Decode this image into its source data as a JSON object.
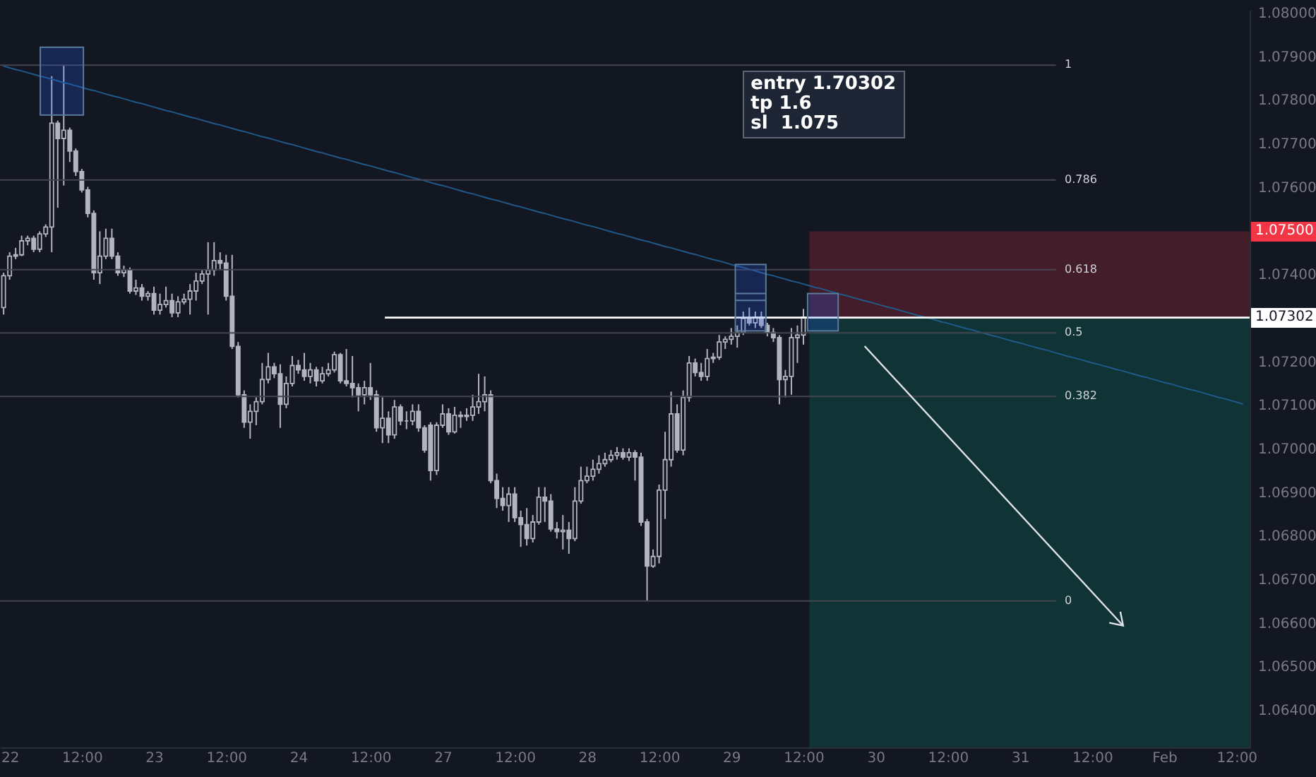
{
  "chart_data": {
    "type": "candlestick",
    "categories": [
      null,
      "22",
      null,
      null,
      null,
      null,
      null,
      null,
      null,
      null,
      null,
      null,
      null,
      "12:00",
      null,
      null,
      null,
      null,
      null,
      null,
      null,
      null,
      null,
      null,
      null,
      "23",
      null,
      null,
      null,
      null,
      null,
      null,
      null,
      null,
      null,
      null,
      null,
      "12:00",
      null,
      null,
      null,
      null,
      null,
      null,
      null,
      null,
      null,
      null,
      null,
      "24",
      null,
      null,
      null,
      null,
      null,
      null,
      null,
      null,
      null,
      null,
      null,
      "12:00",
      null,
      null,
      null,
      null,
      null,
      null,
      null,
      null,
      null,
      null,
      null,
      "27",
      null,
      null,
      null,
      null,
      null,
      null,
      null,
      null,
      null,
      null,
      null,
      "12:00",
      null,
      null,
      null,
      null,
      null,
      null,
      null,
      null,
      null,
      null,
      null,
      "28",
      null,
      null,
      null,
      null,
      null,
      null,
      null,
      null,
      null,
      null,
      null,
      "12:00",
      null,
      null,
      null,
      null,
      null,
      null,
      null,
      null,
      null,
      null,
      null,
      "29",
      null,
      null,
      null,
      null,
      null,
      null,
      null,
      null,
      null,
      null,
      null,
      "12:00",
      null,
      null,
      null,
      null,
      null,
      null,
      null,
      null,
      null,
      null,
      null,
      "30",
      null,
      null,
      null,
      null,
      null,
      null,
      null,
      null,
      null,
      null,
      null,
      "12:00",
      null,
      null,
      null,
      null,
      null,
      null,
      null,
      null,
      null,
      null,
      null,
      "31",
      null,
      null,
      null,
      null,
      null,
      null,
      null,
      null,
      null,
      null,
      null,
      "12:00",
      null,
      null,
      null,
      null,
      null,
      null,
      null,
      null,
      null,
      null,
      null,
      "Feb",
      null,
      null,
      null,
      null,
      null,
      null,
      null,
      null,
      null,
      null,
      null,
      "12:00",
      null
    ],
    "ohlc": [
      [
        1.07325,
        1.07405,
        1.07309,
        1.07398
      ],
      [
        1.07398,
        1.07452,
        1.07389,
        1.07443
      ],
      [
        1.07443,
        1.07462,
        1.07436,
        1.07446
      ],
      [
        1.07446,
        1.0749,
        1.07443,
        1.07478
      ],
      [
        1.07478,
        1.0749,
        1.07468,
        1.07484
      ],
      [
        1.07484,
        1.0749,
        1.07452,
        1.07459
      ],
      [
        1.07459,
        1.075,
        1.07452,
        1.07494
      ],
      [
        1.07494,
        1.07516,
        1.07487,
        1.0751
      ],
      [
        1.0751,
        1.07856,
        1.07452,
        1.07748
      ],
      [
        1.07748,
        1.07754,
        1.07554,
        1.07713
      ],
      [
        1.07713,
        1.07881,
        1.07605,
        1.07732
      ],
      [
        1.07732,
        1.07738,
        1.07659,
        1.07684
      ],
      [
        1.07684,
        1.0769,
        1.07627,
        1.07637
      ],
      [
        1.07637,
        1.07643,
        1.07589,
        1.07595
      ],
      [
        1.07595,
        1.07602,
        1.07532,
        1.07541
      ],
      [
        1.07541,
        1.07548,
        1.07389,
        1.07405
      ],
      [
        1.07405,
        1.075,
        1.07379,
        1.07443
      ],
      [
        1.07443,
        1.07506,
        1.07436,
        1.07484
      ],
      [
        1.07484,
        1.07506,
        1.07436,
        1.07443
      ],
      [
        1.07443,
        1.07452,
        1.07398,
        1.07405
      ],
      [
        1.07405,
        1.07421,
        1.07395,
        1.07411
      ],
      [
        1.07411,
        1.07417,
        1.07357,
        1.07363
      ],
      [
        1.07363,
        1.07389,
        1.07354,
        1.0737
      ],
      [
        1.0737,
        1.07379,
        1.07341,
        1.07351
      ],
      [
        1.07351,
        1.07363,
        1.07341,
        1.07357
      ],
      [
        1.07357,
        1.07373,
        1.07309,
        1.07319
      ],
      [
        1.07319,
        1.07357,
        1.07309,
        1.07332
      ],
      [
        1.07332,
        1.07373,
        1.07325,
        1.07341
      ],
      [
        1.07341,
        1.07357,
        1.07303,
        1.07313
      ],
      [
        1.07313,
        1.07351,
        1.07303,
        1.07338
      ],
      [
        1.07338,
        1.07357,
        1.07332,
        1.07344
      ],
      [
        1.07344,
        1.07379,
        1.07309,
        1.07363
      ],
      [
        1.07363,
        1.07405,
        1.07341,
        1.07386
      ],
      [
        1.07386,
        1.07411,
        1.07379,
        1.07402
      ],
      [
        1.07402,
        1.07475,
        1.07309,
        1.07411
      ],
      [
        1.07411,
        1.07475,
        1.07398,
        1.07433
      ],
      [
        1.07433,
        1.07452,
        1.07411,
        1.07427
      ],
      [
        1.07427,
        1.07446,
        1.07341,
        1.07351
      ],
      [
        1.07351,
        1.07446,
        1.0723,
        1.07236
      ],
      [
        1.07236,
        1.07246,
        1.07119,
        1.07125
      ],
      [
        1.07125,
        1.07135,
        1.07049,
        1.07062
      ],
      [
        1.07062,
        1.07103,
        1.07024,
        1.07087
      ],
      [
        1.07087,
        1.07119,
        1.07055,
        1.07109
      ],
      [
        1.07109,
        1.07198,
        1.07103,
        1.0716
      ],
      [
        1.0716,
        1.07221,
        1.07151,
        1.07189
      ],
      [
        1.07189,
        1.07198,
        1.07163,
        1.07173
      ],
      [
        1.07173,
        1.07195,
        1.07049,
        1.07103
      ],
      [
        1.07103,
        1.07167,
        1.07094,
        1.07151
      ],
      [
        1.07151,
        1.07214,
        1.07144,
        1.07192
      ],
      [
        1.07192,
        1.07205,
        1.07173,
        1.07182
      ],
      [
        1.07182,
        1.07221,
        1.07157,
        1.07167
      ],
      [
        1.07167,
        1.07198,
        1.07151,
        1.07182
      ],
      [
        1.07182,
        1.07189,
        1.07144,
        1.07157
      ],
      [
        1.07157,
        1.07189,
        1.07151,
        1.07173
      ],
      [
        1.07173,
        1.07198,
        1.07167,
        1.07182
      ],
      [
        1.07182,
        1.07224,
        1.07176,
        1.07217
      ],
      [
        1.07217,
        1.07221,
        1.07151,
        1.07157
      ],
      [
        1.07157,
        1.0723,
        1.07144,
        1.07151
      ],
      [
        1.07151,
        1.07214,
        1.07119,
        1.07141
      ],
      [
        1.07141,
        1.07151,
        1.07087,
        1.07125
      ],
      [
        1.07125,
        1.07157,
        1.07103,
        1.07141
      ],
      [
        1.07141,
        1.07198,
        1.07113,
        1.07125
      ],
      [
        1.07125,
        1.07135,
        1.0704,
        1.07049
      ],
      [
        1.07049,
        1.07119,
        1.07014,
        1.07071
      ],
      [
        1.07071,
        1.07087,
        1.07014,
        1.07033
      ],
      [
        1.07033,
        1.07113,
        1.07024,
        1.07097
      ],
      [
        1.07097,
        1.07103,
        1.07055,
        1.07065
      ],
      [
        1.07065,
        1.07087,
        1.07046,
        1.07065
      ],
      [
        1.07065,
        1.07103,
        1.07055,
        1.07087
      ],
      [
        1.07087,
        1.07103,
        1.0704,
        1.07049
      ],
      [
        1.07049,
        1.07055,
        1.06992,
        1.06998
      ],
      [
        1.07055,
        1.07062,
        1.06928,
        1.06951
      ],
      [
        1.06951,
        1.07062,
        1.06941,
        1.07055
      ],
      [
        1.07055,
        1.07103,
        1.07049,
        1.07081
      ],
      [
        1.07081,
        1.07094,
        1.07033,
        1.0704
      ],
      [
        1.0704,
        1.07097,
        1.07036,
        1.07078
      ],
      [
        1.07078,
        1.07087,
        1.07049,
        1.07075
      ],
      [
        1.07075,
        1.07094,
        1.07065,
        1.07078
      ],
      [
        1.07078,
        1.07125,
        1.07065,
        1.07097
      ],
      [
        1.07097,
        1.07173,
        1.07081,
        1.07109
      ],
      [
        1.07109,
        1.07167,
        1.07087,
        1.07125
      ],
      [
        1.07125,
        1.07135,
        1.06922,
        1.06928
      ],
      [
        1.06928,
        1.06944,
        1.06865,
        1.06887
      ],
      [
        1.06887,
        1.06913,
        1.06859,
        1.06871
      ],
      [
        1.06871,
        1.06913,
        1.06833,
        1.06897
      ],
      [
        1.06897,
        1.06913,
        1.06833,
        1.06843
      ],
      [
        1.06843,
        1.06859,
        1.06776,
        1.06827
      ],
      [
        1.06827,
        1.06865,
        1.06779,
        1.06795
      ],
      [
        1.06795,
        1.06849,
        1.06786,
        1.06833
      ],
      [
        1.06833,
        1.06913,
        1.06827,
        1.0689
      ],
      [
        1.0689,
        1.06913,
        1.06833,
        1.06881
      ],
      [
        1.06881,
        1.06897,
        1.06811,
        1.06817
      ],
      [
        1.06817,
        1.06833,
        1.06795,
        1.06811
      ],
      [
        1.06811,
        1.06849,
        1.0677,
        1.06814
      ],
      [
        1.06814,
        1.06833,
        1.0676,
        1.06795
      ],
      [
        1.06795,
        1.06913,
        1.06789,
        1.06881
      ],
      [
        1.06881,
        1.0696,
        1.06875,
        1.06928
      ],
      [
        1.06928,
        1.0696,
        1.06922,
        1.06938
      ],
      [
        1.06938,
        1.06976,
        1.06928,
        1.06954
      ],
      [
        1.06954,
        1.06986,
        1.06944,
        1.06967
      ],
      [
        1.06967,
        1.06992,
        1.0696,
        1.06976
      ],
      [
        1.06976,
        1.06998,
        1.0697,
        1.06986
      ],
      [
        1.06986,
        1.07005,
        1.06976,
        1.06992
      ],
      [
        1.06992,
        1.07002,
        1.06976,
        1.06982
      ],
      [
        1.06982,
        1.07002,
        1.06973,
        1.06992
      ],
      [
        1.06992,
        1.06998,
        1.06928,
        1.06982
      ],
      [
        1.06982,
        1.06992,
        1.06824,
        1.06833
      ],
      [
        1.06833,
        1.0684,
        1.06652,
        1.06732
      ],
      [
        1.06732,
        1.0677,
        1.06728,
        1.06754
      ],
      [
        1.06754,
        1.06919,
        1.06738,
        1.06906
      ],
      [
        1.06906,
        1.0704,
        1.0684,
        1.06976
      ],
      [
        1.06976,
        1.07132,
        1.0696,
        1.07081
      ],
      [
        1.07081,
        1.07103,
        1.06992,
        1.06998
      ],
      [
        1.06998,
        1.07135,
        1.06986,
        1.07119
      ],
      [
        1.07119,
        1.07214,
        1.07109,
        1.07198
      ],
      [
        1.07198,
        1.07208,
        1.07167,
        1.07176
      ],
      [
        1.07176,
        1.07198,
        1.07157,
        1.07167
      ],
      [
        1.07167,
        1.0723,
        1.07157,
        1.07208
      ],
      [
        1.07208,
        1.07221,
        1.07198,
        1.07211
      ],
      [
        1.07211,
        1.07262,
        1.07205,
        1.07246
      ],
      [
        1.07246,
        1.07259,
        1.0723,
        1.07252
      ],
      [
        1.07252,
        1.07278,
        1.0724,
        1.07259
      ],
      [
        1.07259,
        1.07284,
        1.07233,
        1.07268
      ],
      [
        1.07268,
        1.07316,
        1.07262,
        1.073
      ],
      [
        1.073,
        1.07325,
        1.07284,
        1.0729
      ],
      [
        1.0729,
        1.07316,
        1.07278,
        1.07303
      ],
      [
        1.07303,
        1.07316,
        1.07278,
        1.07284
      ],
      [
        1.07284,
        1.0729,
        1.07259,
        1.07268
      ],
      [
        1.07268,
        1.07278,
        1.07246,
        1.07256
      ],
      [
        1.07256,
        1.07262,
        1.07103,
        1.0716
      ],
      [
        1.0716,
        1.07182,
        1.07119,
        1.07167
      ],
      [
        1.07167,
        1.07278,
        1.07125,
        1.07256
      ],
      [
        1.07256,
        1.07284,
        1.07198,
        1.07262
      ],
      [
        1.07262,
        1.07322,
        1.0724,
        1.07303
      ],
      null,
      null,
      null,
      null,
      null,
      null,
      null,
      null,
      null,
      null,
      null,
      null,
      null,
      null,
      null,
      null,
      null,
      null,
      null,
      null,
      null,
      null,
      null,
      null,
      null,
      null,
      null,
      null,
      null,
      null,
      null,
      null,
      null,
      null,
      null,
      null,
      null,
      null,
      null,
      null,
      null,
      null,
      null,
      null,
      null,
      null,
      null,
      null,
      null,
      null,
      null,
      null,
      null,
      null,
      null,
      null,
      null,
      null,
      null,
      null,
      null,
      null,
      null,
      null,
      null,
      null,
      null,
      null,
      null,
      null,
      null,
      null,
      null
    ],
    "series": [
      {
        "type": "line",
        "color": "#1f5a8a",
        "values": [
          1.07879,
          1.07875,
          1.07871,
          1.07868,
          1.07864,
          1.0786,
          1.07856,
          1.07853,
          1.07849,
          1.07845,
          1.07841,
          1.07838,
          1.07834,
          1.0783,
          1.07826,
          1.07823,
          1.07819,
          1.07815,
          1.07811,
          1.07808,
          1.07804,
          1.078,
          1.07796,
          1.07793,
          1.07789,
          1.07785,
          1.07781,
          1.07777,
          1.07774,
          1.0777,
          1.07766,
          1.07762,
          1.07759,
          1.07755,
          1.07751,
          1.07747,
          1.07744,
          1.0774,
          1.07736,
          1.07732,
          1.07729,
          1.07725,
          1.07721,
          1.07717,
          1.07714,
          1.0771,
          1.07706,
          1.07702,
          1.07699,
          1.07695,
          1.07691,
          1.07687,
          1.07683,
          1.0768,
          1.07676,
          1.07672,
          1.07668,
          1.07665,
          1.07661,
          1.07657,
          1.07653,
          1.0765,
          1.07646,
          1.07642,
          1.07638,
          1.07635,
          1.07631,
          1.07627,
          1.07623,
          1.0762,
          1.07616,
          1.07612,
          1.07608,
          1.07605,
          1.07601,
          1.07597,
          1.07593,
          1.07589,
          1.07586,
          1.07582,
          1.07578,
          1.07574,
          1.07571,
          1.07567,
          1.07563,
          1.07559,
          1.07556,
          1.07552,
          1.07548,
          1.07544,
          1.07541,
          1.07537,
          1.07533,
          1.07529,
          1.07526,
          1.07522,
          1.07518,
          1.07514,
          1.07511,
          1.07507,
          1.07503,
          1.07499,
          1.07495,
          1.07492,
          1.07488,
          1.07484,
          1.0748,
          1.07477,
          1.07473,
          1.07469,
          1.07465,
          1.07462,
          1.07458,
          1.07454,
          1.0745,
          1.07447,
          1.07443,
          1.07439,
          1.07435,
          1.07432,
          1.07428,
          1.07424,
          1.0742,
          1.07417,
          1.07413,
          1.07409,
          1.07405,
          1.07401,
          1.07398,
          1.07394,
          1.0739,
          1.07386,
          1.07383,
          1.07379,
          1.07375,
          1.07371,
          1.07368,
          1.07364,
          1.0736,
          1.07356,
          1.07353,
          1.07349,
          1.07345,
          1.07341,
          1.07338,
          1.07334,
          1.0733,
          1.07326,
          1.07323,
          1.07319,
          1.07315,
          1.07311,
          1.07307,
          1.07304,
          1.073,
          1.07296,
          1.07292,
          1.07289,
          1.07285,
          1.07281,
          1.07277,
          1.07274,
          1.0727,
          1.07266,
          1.07262,
          1.07259,
          1.07255,
          1.07251,
          1.07247,
          1.07244,
          1.0724,
          1.07236,
          1.07232,
          1.07229,
          1.07225,
          1.07221,
          1.07217,
          1.07213,
          1.0721,
          1.07206,
          1.07202,
          1.07198,
          1.07195,
          1.07191,
          1.07187,
          1.07183,
          1.0718,
          1.07176,
          1.07172,
          1.07168,
          1.07165,
          1.07161,
          1.07157,
          1.07153,
          1.0715,
          1.07146,
          1.07142,
          1.07138,
          1.07135,
          1.07131,
          1.07127,
          1.07123,
          1.07119,
          1.07116,
          1.07112,
          1.07108,
          1.07104
        ]
      }
    ],
    "ylim": [
      1.06316,
      1.08008
    ],
    "yticks": [
      {
        "value": 1.064,
        "label": "1.06400"
      },
      {
        "value": 1.065,
        "label": "1.06500"
      },
      {
        "value": 1.066,
        "label": "1.06600"
      },
      {
        "value": 1.067,
        "label": "1.06700"
      },
      {
        "value": 1.068,
        "label": "1.06800"
      },
      {
        "value": 1.069,
        "label": "1.06900"
      },
      {
        "value": 1.07,
        "label": "1.07000"
      },
      {
        "value": 1.071,
        "label": "1.07100"
      },
      {
        "value": 1.072,
        "label": "1.07200"
      },
      {
        "value": 1.074,
        "label": "1.07400"
      },
      {
        "value": 1.076,
        "label": "1.07600"
      },
      {
        "value": 1.077,
        "label": "1.07700"
      },
      {
        "value": 1.078,
        "label": "1.07800"
      },
      {
        "value": 1.079,
        "label": "1.07900"
      },
      {
        "value": 1.08,
        "label": "1.08000"
      }
    ],
    "ref_lines": [
      {
        "axis": "y",
        "value": 1.07881,
        "color": "#434651"
      },
      {
        "axis": "y",
        "value": 1.07618,
        "color": "#434651"
      },
      {
        "axis": "y",
        "value": 1.07412,
        "color": "#434651"
      },
      {
        "axis": "y",
        "value": 1.07267,
        "color": "#434651"
      },
      {
        "axis": "y",
        "value": 1.07121,
        "color": "#434651"
      },
      {
        "axis": "y",
        "value": 1.06652,
        "color": "#434651"
      },
      {
        "axis": "y",
        "value": 1.07302,
        "label": "1.07302",
        "color": "#ffffff"
      }
    ],
    "bands": [
      {
        "axis": "y",
        "from": 1.07302,
        "to": 1.075,
        "label": "1.07500",
        "color": "#f23645"
      },
      {
        "axis": "y",
        "from": 1.06316,
        "to": 1.07302,
        "color": "#089981"
      }
    ],
    "annotations": [
      "1",
      "0.786",
      "0.618",
      "0.5",
      "0.382",
      "0",
      "entry 1.70302",
      "tp 1.6",
      "sl  1.075"
    ]
  }
}
